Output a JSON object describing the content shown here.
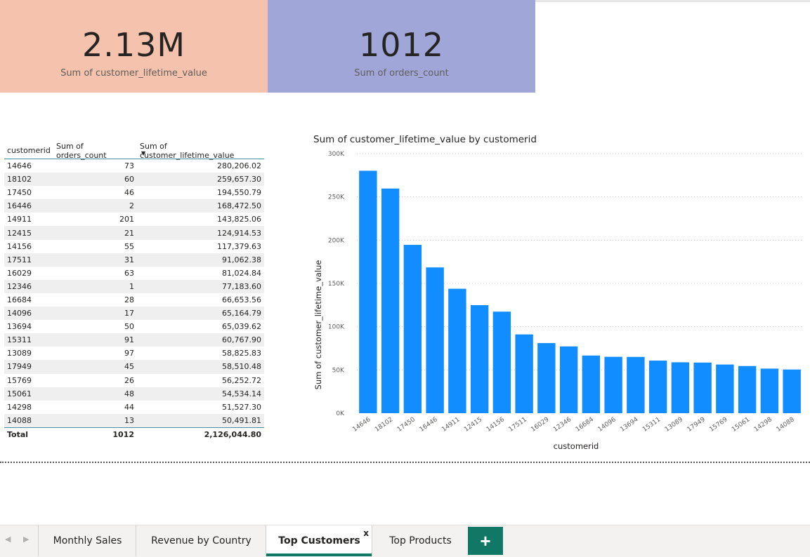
{
  "kpis": [
    {
      "value": "2.13M",
      "label": "Sum of customer_lifetime_value",
      "color": "#f4c2ad"
    },
    {
      "value": "1012",
      "label": "Sum of orders_count",
      "color": "#a0a6d8"
    }
  ],
  "table": {
    "headers": [
      "customerid",
      "Sum of orders_count",
      "Sum of customer_lifetime_value"
    ],
    "rows": [
      [
        "14646",
        "73",
        "280,206.02"
      ],
      [
        "18102",
        "60",
        "259,657.30"
      ],
      [
        "17450",
        "46",
        "194,550.79"
      ],
      [
        "16446",
        "2",
        "168,472.50"
      ],
      [
        "14911",
        "201",
        "143,825.06"
      ],
      [
        "12415",
        "21",
        "124,914.53"
      ],
      [
        "14156",
        "55",
        "117,379.63"
      ],
      [
        "17511",
        "31",
        "91,062.38"
      ],
      [
        "16029",
        "63",
        "81,024.84"
      ],
      [
        "12346",
        "1",
        "77,183.60"
      ],
      [
        "16684",
        "28",
        "66,653.56"
      ],
      [
        "14096",
        "17",
        "65,164.79"
      ],
      [
        "13694",
        "50",
        "65,039.62"
      ],
      [
        "15311",
        "91",
        "60,767.90"
      ],
      [
        "13089",
        "97",
        "58,825.83"
      ],
      [
        "17949",
        "45",
        "58,510.48"
      ],
      [
        "15769",
        "26",
        "56,252.72"
      ],
      [
        "15061",
        "48",
        "54,534.14"
      ],
      [
        "14298",
        "44",
        "51,527.30"
      ],
      [
        "14088",
        "13",
        "50,491.81"
      ]
    ],
    "total": {
      "label": "Total",
      "orders": "1012",
      "value": "2,126,044.80"
    }
  },
  "chart_data": {
    "type": "bar",
    "title": "Sum of customer_lifetime_value by customerid",
    "xlabel": "customerid",
    "ylabel": "Sum of customer_lifetime_value",
    "categories": [
      "14646",
      "18102",
      "17450",
      "16446",
      "14911",
      "12415",
      "14156",
      "17511",
      "16029",
      "12346",
      "16684",
      "14096",
      "13694",
      "15311",
      "13089",
      "17949",
      "15769",
      "15061",
      "14298",
      "14088"
    ],
    "values": [
      280206.02,
      259657.3,
      194550.79,
      168472.5,
      143825.06,
      124914.53,
      117379.63,
      91062.38,
      81024.84,
      77183.6,
      66653.56,
      65164.79,
      65039.62,
      60767.9,
      58825.83,
      58510.48,
      56252.72,
      54534.14,
      51527.3,
      50491.81
    ],
    "yticks": [
      0,
      50000,
      100000,
      150000,
      200000,
      250000,
      300000
    ],
    "ytick_labels": [
      "0K",
      "50K",
      "100K",
      "150K",
      "200K",
      "250K",
      "300K"
    ],
    "ylim": [
      0,
      300000
    ],
    "grid": true,
    "bar_color": "#118dff"
  },
  "tabs": [
    {
      "label": "Monthly Sales",
      "active": false
    },
    {
      "label": "Revenue by Country",
      "active": false
    },
    {
      "label": "Top Customers",
      "active": true
    },
    {
      "label": "Top Products",
      "active": false
    }
  ],
  "tab_close_label": "x",
  "add_tab_label": "+"
}
